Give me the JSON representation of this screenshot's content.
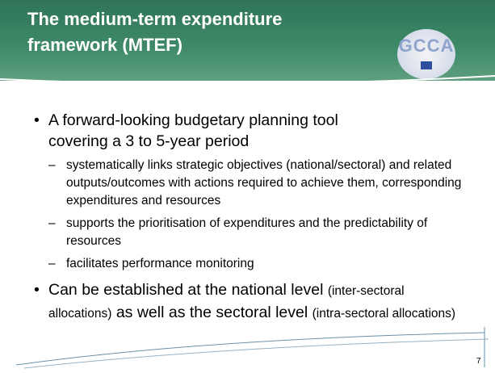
{
  "header": {
    "title_lines": [
      "The medium-term expenditure",
      "framework (MTEF)"
    ]
  },
  "logo": {
    "text": "GCCA"
  },
  "bullets": [
    {
      "text_lines": [
        "A forward-looking budgetary planning tool",
        "covering a 3 to 5-year period"
      ],
      "subs": [
        "systematically links strategic objectives (national/sectoral) and related outputs/outcomes with actions required to achieve them, corresponding expenditures and resources",
        "supports the prioritisation of expenditures and the predictability of resources",
        "facilitates performance monitoring"
      ]
    },
    {
      "segments": [
        {
          "text": "Can be established at the national level",
          "size": "large"
        },
        {
          "text": "(inter-sectoral allocations)",
          "size": "small"
        },
        {
          "text": "as well as the sectoral level",
          "size": "large"
        },
        {
          "text": "(intra-sectoral allocations)",
          "size": "small"
        }
      ]
    }
  ],
  "page_number": "7"
}
